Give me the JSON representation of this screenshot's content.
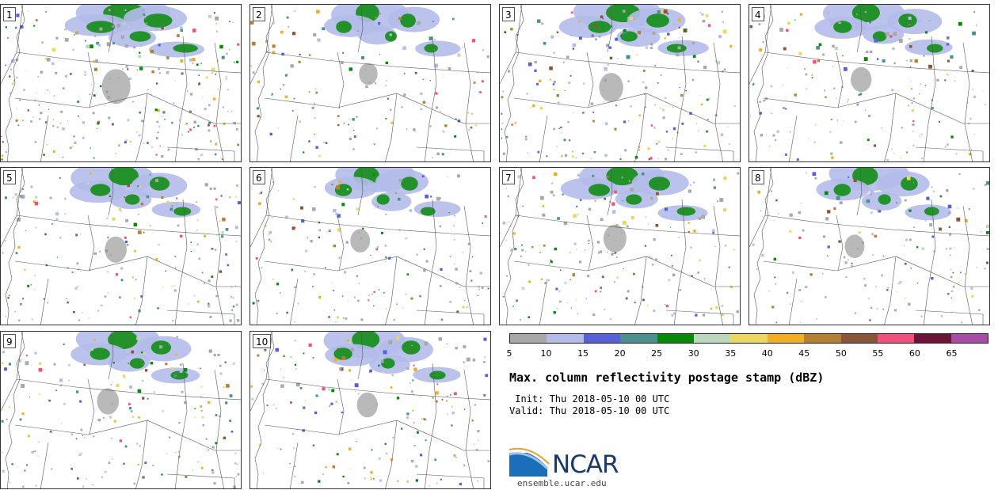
{
  "panels": [
    {
      "label": "1",
      "intensity": 1.0
    },
    {
      "label": "2",
      "intensity": 0.55
    },
    {
      "label": "3",
      "intensity": 0.8
    },
    {
      "label": "4",
      "intensity": 0.65
    },
    {
      "label": "5",
      "intensity": 0.7
    },
    {
      "label": "6",
      "intensity": 0.6
    },
    {
      "label": "7",
      "intensity": 0.75
    },
    {
      "label": "8",
      "intensity": 0.6
    },
    {
      "label": "9",
      "intensity": 0.7
    },
    {
      "label": "10",
      "intensity": 0.65
    }
  ],
  "colorbar": {
    "ticks": [
      "5",
      "10",
      "15",
      "20",
      "25",
      "30",
      "35",
      "40",
      "45",
      "50",
      "55",
      "60",
      "65"
    ],
    "colors": [
      "#a8a8a8",
      "#b4bcea",
      "#5860d8",
      "#4a9090",
      "#088a08",
      "#bcd8bc",
      "#ecd860",
      "#f0ae20",
      "#b48034",
      "#8c5438",
      "#f0507c",
      "#6a1438",
      "#a84ca8"
    ]
  },
  "title": "Max. column reflectivity postage stamp (dBZ)",
  "init_line": " Init: Thu 2018-05-10 00 UTC",
  "valid_line": "Valid: Thu 2018-05-10 00 UTC",
  "logo": "NCAR",
  "site": "ensemble.ucar.edu"
}
